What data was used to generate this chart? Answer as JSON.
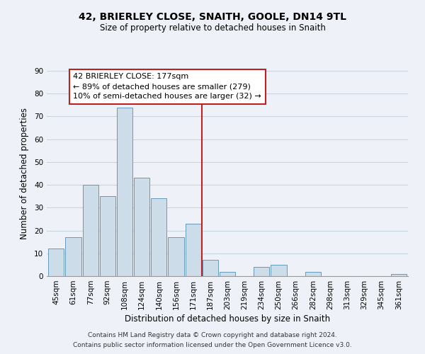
{
  "title": "42, BRIERLEY CLOSE, SNAITH, GOOLE, DN14 9TL",
  "subtitle": "Size of property relative to detached houses in Snaith",
  "xlabel": "Distribution of detached houses by size in Snaith",
  "ylabel": "Number of detached properties",
  "footer_line1": "Contains HM Land Registry data © Crown copyright and database right 2024.",
  "footer_line2": "Contains public sector information licensed under the Open Government Licence v3.0.",
  "bar_labels": [
    "45sqm",
    "61sqm",
    "77sqm",
    "92sqm",
    "108sqm",
    "124sqm",
    "140sqm",
    "156sqm",
    "171sqm",
    "187sqm",
    "203sqm",
    "219sqm",
    "234sqm",
    "250sqm",
    "266sqm",
    "282sqm",
    "298sqm",
    "313sqm",
    "329sqm",
    "345sqm",
    "361sqm"
  ],
  "bar_values": [
    12,
    17,
    40,
    35,
    74,
    43,
    34,
    17,
    23,
    7,
    2,
    0,
    4,
    5,
    0,
    2,
    0,
    0,
    0,
    0,
    1
  ],
  "bar_color": "#ccdce8",
  "bar_edge_color": "#6699bb",
  "grid_color": "#c8d4e0",
  "annotation_text": "42 BRIERLEY CLOSE: 177sqm\n← 89% of detached houses are smaller (279)\n10% of semi-detached houses are larger (32) →",
  "annotation_box_color": "#ffffff",
  "annotation_box_edge": "#bb2222",
  "vline_color": "#bb2222",
  "ylim": [
    0,
    90
  ],
  "yticks": [
    0,
    10,
    20,
    30,
    40,
    50,
    60,
    70,
    80,
    90
  ],
  "background_color": "#eef2f8",
  "title_fontsize": 10,
  "subtitle_fontsize": 8.5,
  "xlabel_fontsize": 8.5,
  "ylabel_fontsize": 8.5,
  "tick_fontsize": 7.5,
  "footer_fontsize": 6.5
}
